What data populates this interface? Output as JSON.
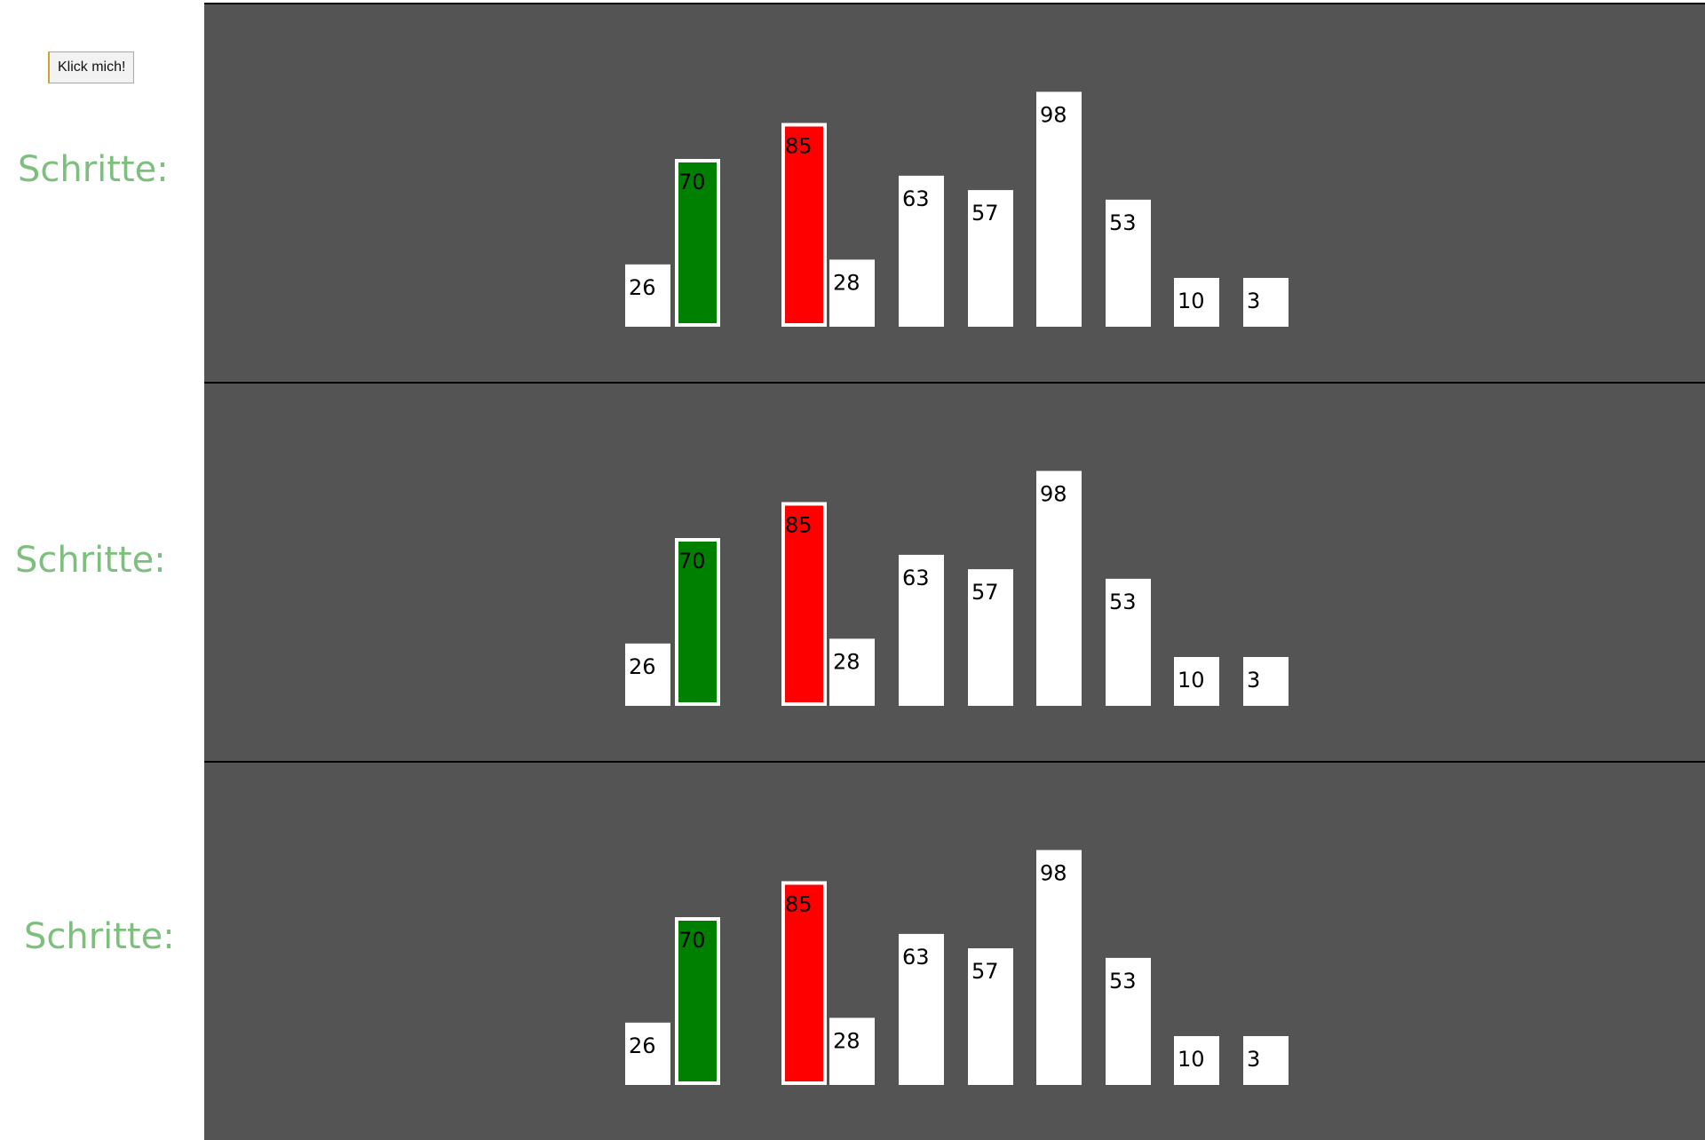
{
  "controls": {
    "button_label": "Klick mich!"
  },
  "steps_label": "Schritte:",
  "colors": {
    "panel_background": "#545454",
    "bar_default": "#ffffff",
    "bar_green": "#008000",
    "bar_red": "#ff0000",
    "label_color": "#7dc07d"
  },
  "chart_data": [
    {
      "type": "bar",
      "values": [
        26,
        70,
        85,
        28,
        63,
        57,
        98,
        53,
        10,
        3
      ],
      "highlight": {
        "green": 1,
        "red": 2
      }
    },
    {
      "type": "bar",
      "values": [
        26,
        70,
        85,
        28,
        63,
        57,
        98,
        53,
        10,
        3
      ],
      "highlight": {
        "green": 1,
        "red": 2
      }
    },
    {
      "type": "bar",
      "values": [
        26,
        70,
        85,
        28,
        63,
        57,
        98,
        53,
        10,
        3
      ],
      "highlight": {
        "green": 1,
        "red": 2
      }
    }
  ]
}
